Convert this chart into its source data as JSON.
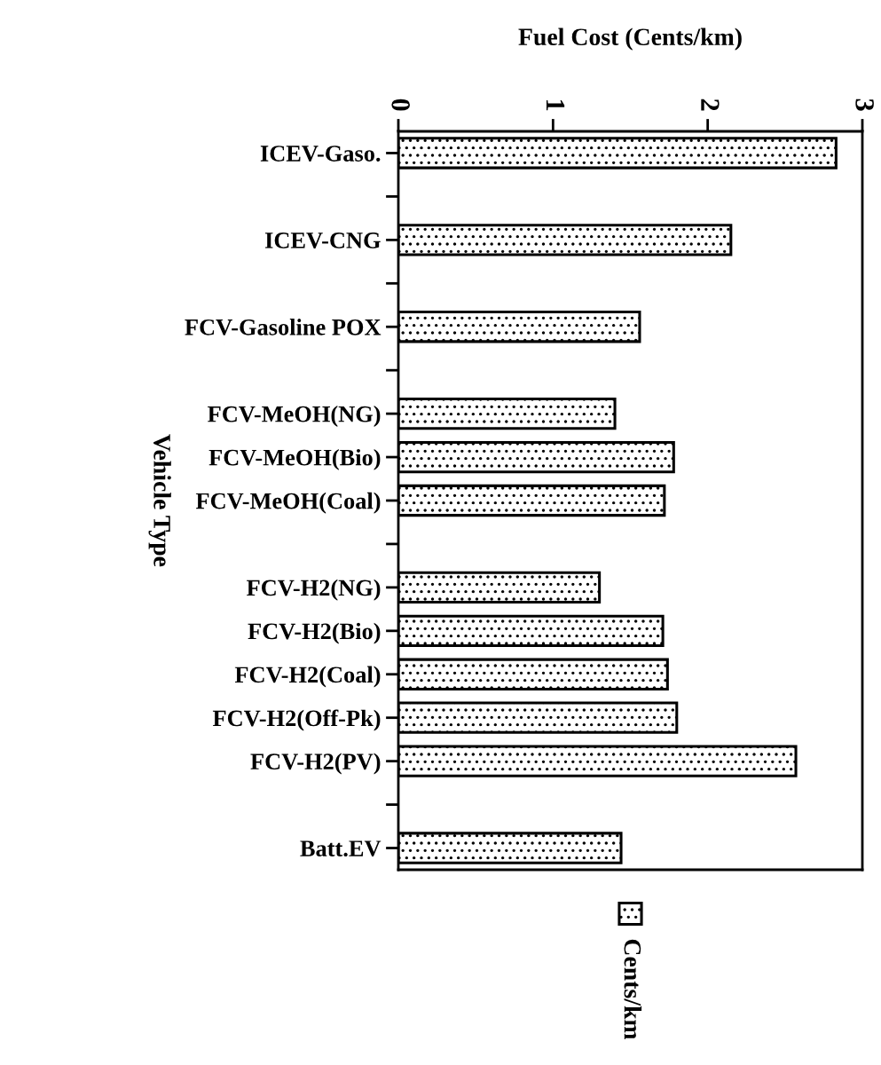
{
  "chart_data": {
    "type": "bar",
    "orientation": "horizontal",
    "title": "Fuel Cost (Cents/km)",
    "ylabel": "Vehicle Type",
    "categories": [
      "ICEV-Gaso.",
      null,
      "ICEV-CNG",
      null,
      "FCV-Gasoline POX",
      null,
      "FCV-MeOH(NG)",
      "FCV-MeOH(Bio)",
      "FCV-MeOH(Coal)",
      null,
      "FCV-H2(NG)",
      "FCV-H2(Bio)",
      "FCV-H2(Coal)",
      "FCV-H2(Off-Pk)",
      "FCV-H2(PV)",
      null,
      "Batt.EV"
    ],
    "series": [
      {
        "name": "Cents/km",
        "color": "#000000",
        "values": [
          2.83,
          null,
          2.15,
          null,
          1.56,
          null,
          1.4,
          1.78,
          1.72,
          null,
          1.3,
          1.71,
          1.74,
          1.8,
          2.57,
          null,
          1.44
        ]
      }
    ],
    "xlim": [
      0,
      3
    ],
    "xticks": [
      0,
      1,
      2,
      3
    ],
    "grid": false,
    "legend": "bottom"
  }
}
